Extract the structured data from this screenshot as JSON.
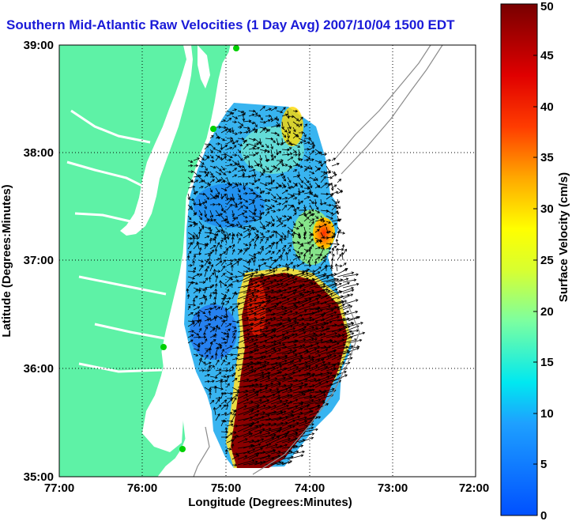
{
  "title": "Southern Mid-Atlantic Raw Velocities (1 Day Avg) 2007/10/04 1500 EDT",
  "chart_data": {
    "type": "heatmap",
    "title": "Southern Mid-Atlantic Raw Velocities (1 Day Avg) 2007/10/04 1500 EDT",
    "xlabel": "Longitude (Degrees:Minutes)",
    "ylabel": "Latitude (Degrees:Minutes)",
    "x_ticks": [
      "77:00",
      "76:00",
      "75:00",
      "74:00",
      "73:00",
      "72:00"
    ],
    "y_ticks": [
      "39:00",
      "38:00",
      "37:00",
      "36:00",
      "35:00"
    ],
    "xlim": [
      -77,
      -72
    ],
    "ylim": [
      35,
      39
    ],
    "grid": true,
    "colorbar": {
      "label": "Surface Velocity (cm/s)",
      "range": [
        0,
        50
      ],
      "ticks": [
        "0",
        "5",
        "10",
        "15",
        "20",
        "25",
        "30",
        "35",
        "40",
        "45",
        "50"
      ]
    },
    "colors": {
      "land": "#5ef2a6",
      "low": "#1e64ff",
      "high": "#8b0000",
      "title": "#1a1ad8"
    }
  }
}
